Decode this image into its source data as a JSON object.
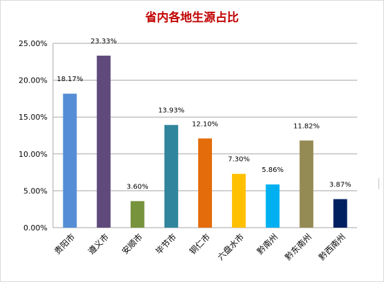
{
  "chart_data": {
    "type": "bar",
    "title": "省内各地生源占比",
    "categories": [
      "贵阳市",
      "遵义市",
      "安顺市",
      "毕节市",
      "铜仁市",
      "六盘水市",
      "黔南州",
      "黔东南州",
      "黔西南州"
    ],
    "values": [
      18.17,
      23.33,
      3.6,
      13.93,
      12.1,
      7.3,
      5.86,
      11.82,
      3.87
    ],
    "data_labels": [
      "18.17%",
      "23.33%",
      "3.60%",
      "13.93%",
      "12.10%",
      "7.30%",
      "5.86%",
      "11.82%",
      "3.87%"
    ],
    "y_ticks": [
      "0.00%",
      "5.00%",
      "10.00%",
      "15.00%",
      "20.00%",
      "25.00%"
    ],
    "y_tick_values": [
      0,
      5,
      10,
      15,
      20,
      25
    ],
    "ylim": [
      0,
      25
    ],
    "grid": true,
    "legend": "none",
    "colors": [
      "#558ed5",
      "#604a7b",
      "#77933c",
      "#31859c",
      "#e46c0a",
      "#ffc000",
      "#00b0f0",
      "#948a54",
      "#002060"
    ],
    "grid_color": "#a6a6a6"
  }
}
